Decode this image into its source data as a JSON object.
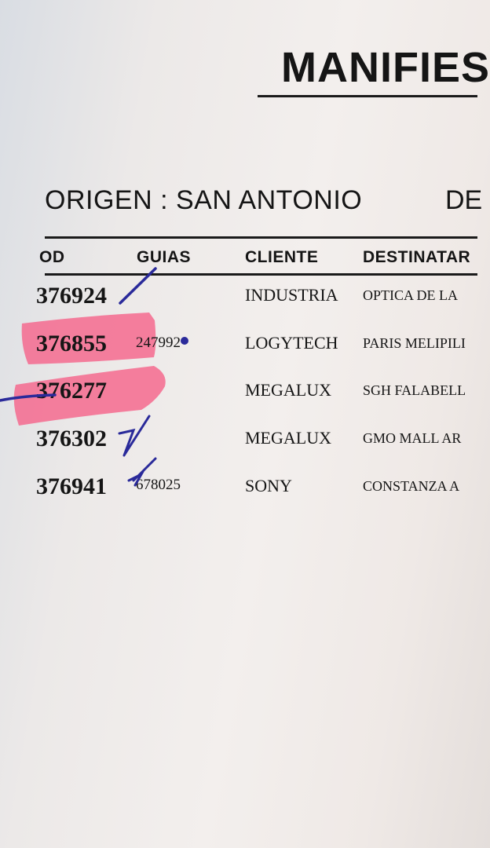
{
  "document": {
    "title": "MANIFIES",
    "origin_label": "ORIGEN : SAN ANTONIO",
    "destination_label": "DE",
    "columns": [
      "OD",
      "GUIAS",
      "CLIENTE",
      "DESTINATAR"
    ],
    "rows": [
      {
        "code": "376924",
        "guia": "",
        "cliente": "INDUSTRIA",
        "destinatario": "OPTICA DE LA",
        "highlighted": false
      },
      {
        "code": "376855",
        "guia": "247992",
        "cliente": "LOGYTECH",
        "destinatario": "PARIS MELIPILI",
        "highlighted": true
      },
      {
        "code": "376277",
        "guia": "",
        "cliente": "MEGALUX",
        "destinatario": "SGH FALABELL",
        "highlighted": true
      },
      {
        "code": "376302",
        "guia": "",
        "cliente": "MEGALUX",
        "destinatario": "GMO MALL AR",
        "highlighted": false
      },
      {
        "code": "376941",
        "guia": "678025",
        "cliente": "SONY",
        "destinatario": "CONSTANZA A",
        "highlighted": false
      }
    ],
    "colors": {
      "highlighter": "#f46a8e",
      "pen": "#2a2a9a"
    }
  }
}
